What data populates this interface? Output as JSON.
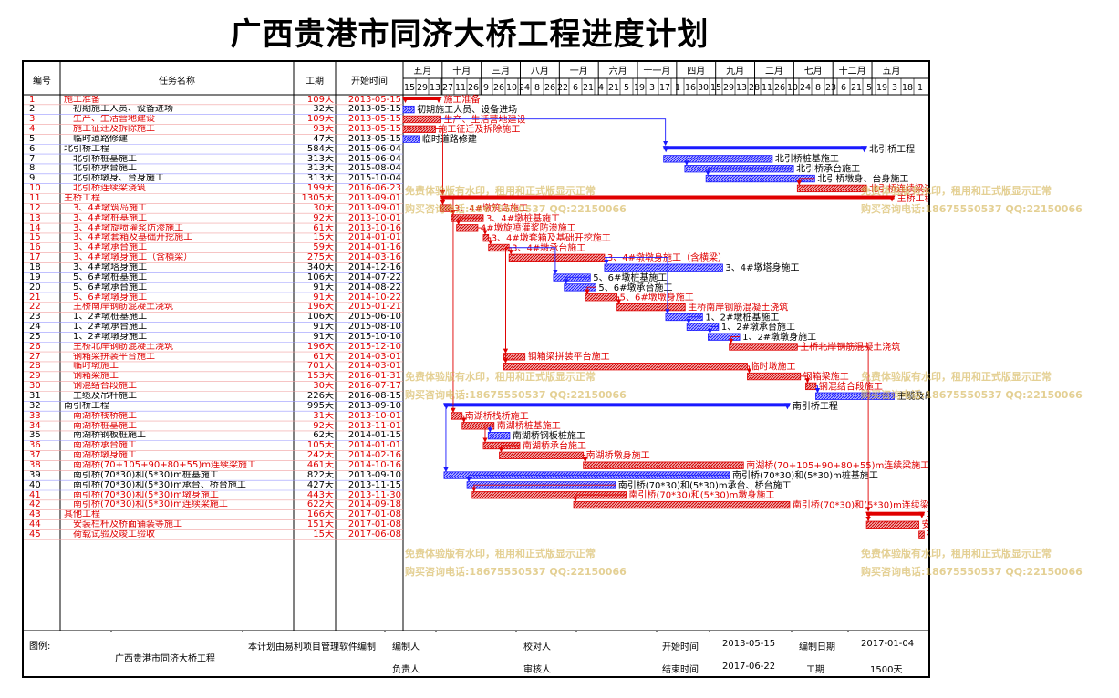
{
  "title": "广西贵港市同济大桥工程进度计划",
  "columns": {
    "id": "编号",
    "name": "任务名称",
    "duration": "工期",
    "start": "开始时间"
  },
  "timeline": {
    "months": [
      "五月",
      "十月",
      "三月",
      "八月",
      "一月",
      "六月",
      "十一月",
      "四月",
      "九月",
      "二月",
      "七月",
      "十二月",
      "五月"
    ],
    "days": [
      "15",
      "29",
      "13",
      "27",
      "11",
      "26",
      "9",
      "26",
      "10",
      "24",
      "8",
      "26",
      "22",
      "6",
      "21",
      "4",
      "21",
      "5",
      "19",
      "3",
      "17",
      "1",
      "16",
      "30",
      "15",
      "29",
      "13",
      "28",
      "11",
      "26",
      "10",
      "24",
      "8",
      "23",
      "6",
      "21",
      "5",
      "19",
      "3",
      "18",
      "1"
    ]
  },
  "chart_data": {
    "type": "gantt",
    "title": "广西贵港市同济大桥工程进度计划",
    "x_start": "2013-05-15",
    "x_end": "2017-06-30",
    "tasks": [
      {
        "id": "1",
        "name": "施工准备",
        "duration": "109天",
        "start": "2013-05-15",
        "days": 109,
        "kind": "summary",
        "color": "red",
        "bar_label": "施工准备"
      },
      {
        "id": "2",
        "name": "初期施工人员、设备进场",
        "duration": "32天",
        "start": "2013-05-15",
        "days": 32,
        "kind": "task",
        "color": "blue",
        "bar_label": "初期施工人员、设备进场"
      },
      {
        "id": "3",
        "name": "生产、生活营地建设",
        "duration": "109天",
        "start": "2013-05-15",
        "days": 109,
        "kind": "task",
        "color": "red",
        "bar_label": "生产、生活营地建设"
      },
      {
        "id": "4",
        "name": "施工征迁及拆除施工",
        "duration": "93天",
        "start": "2013-05-15",
        "days": 93,
        "kind": "task",
        "color": "red",
        "bar_label": "施工征迁及拆除施工"
      },
      {
        "id": "5",
        "name": "临时道路修建",
        "duration": "47天",
        "start": "2013-05-15",
        "days": 47,
        "kind": "task",
        "color": "blue",
        "bar_label": "临时道路修建"
      },
      {
        "id": "6",
        "name": "北引桥工程",
        "duration": "584天",
        "start": "2015-06-04",
        "days": 584,
        "kind": "summary",
        "color": "blue",
        "bar_label": "北引桥工程"
      },
      {
        "id": "7",
        "name": "北引桥桩基施工",
        "duration": "313天",
        "start": "2015-06-04",
        "days": 313,
        "kind": "task",
        "color": "blue",
        "bar_label": "北引桥桩基施工"
      },
      {
        "id": "8",
        "name": "北引桥承台施工",
        "duration": "313天",
        "start": "2015-08-04",
        "days": 313,
        "kind": "task",
        "color": "blue",
        "bar_label": "北引桥承台施工"
      },
      {
        "id": "9",
        "name": "北引桥墩身、台身施工",
        "duration": "313天",
        "start": "2015-10-04",
        "days": 313,
        "kind": "task",
        "color": "blue",
        "bar_label": "北引桥墩身、台身施工"
      },
      {
        "id": "10",
        "name": "北引桥连续梁浇筑",
        "duration": "199天",
        "start": "2016-06-23",
        "days": 199,
        "kind": "task",
        "color": "red",
        "bar_label": "北引桥连续梁浇筑"
      },
      {
        "id": "11",
        "name": "主桥工程",
        "duration": "1305天",
        "start": "2013-09-01",
        "days": 1305,
        "kind": "summary",
        "color": "red",
        "bar_label": "主桥工程"
      },
      {
        "id": "12",
        "name": "3、4#墩筑岛施工",
        "duration": "30天",
        "start": "2013-09-01",
        "days": 30,
        "kind": "task",
        "color": "red",
        "bar_label": "3、4#墩筑岛施工"
      },
      {
        "id": "13",
        "name": "3、4#墩桩基施工",
        "duration": "92天",
        "start": "2013-10-01",
        "days": 92,
        "kind": "task",
        "color": "red",
        "bar_label": "3、4#墩桩基施工"
      },
      {
        "id": "14",
        "name": "3、4#墩旋喷灌浆防渗施工",
        "duration": "61天",
        "start": "2013-10-16",
        "days": 61,
        "kind": "task",
        "color": "red",
        "bar_label": "4#墩旋喷灌浆防渗施工"
      },
      {
        "id": "15",
        "name": "3、4#墩套箱及基础开挖施工",
        "duration": "15天",
        "start": "2014-01-01",
        "days": 15,
        "kind": "task",
        "color": "red",
        "bar_label": "3、4#墩套箱及基础开挖施工"
      },
      {
        "id": "16",
        "name": "3、4#墩承台施工",
        "duration": "59天",
        "start": "2014-01-16",
        "days": 59,
        "kind": "task",
        "color": "red",
        "bar_label": "3、4#墩承台施工"
      },
      {
        "id": "17",
        "name": "3、4#墩墩身施工（含横梁）",
        "duration": "275天",
        "start": "2014-03-16",
        "days": 275,
        "kind": "task",
        "color": "red",
        "bar_label": "3、4#墩墩身施工（含横梁）"
      },
      {
        "id": "18",
        "name": "3、4#墩塔身施工",
        "duration": "340天",
        "start": "2014-12-16",
        "days": 340,
        "kind": "task",
        "color": "blue",
        "bar_label": "3、4#墩塔身施工"
      },
      {
        "id": "19",
        "name": "5、6#墩桩基施工",
        "duration": "106天",
        "start": "2014-07-22",
        "days": 106,
        "kind": "task",
        "color": "blue",
        "bar_label": "5、6#墩桩基施工"
      },
      {
        "id": "20",
        "name": "5、6#墩承台施工",
        "duration": "91天",
        "start": "2014-08-22",
        "days": 91,
        "kind": "task",
        "color": "blue",
        "bar_label": "5、6#墩承台施工"
      },
      {
        "id": "21",
        "name": "5、6#墩墩身施工",
        "duration": "91天",
        "start": "2014-10-22",
        "days": 91,
        "kind": "task",
        "color": "red",
        "bar_label": "5、6#墩墩身施工"
      },
      {
        "id": "22",
        "name": "主桥南岸钢筋混凝土浇筑",
        "duration": "196天",
        "start": "2015-01-21",
        "days": 196,
        "kind": "task",
        "color": "red",
        "bar_label": "主桥南岸钢筋混凝土浇筑"
      },
      {
        "id": "23",
        "name": "1、2#墩桩基施工",
        "duration": "106天",
        "start": "2015-06-10",
        "days": 106,
        "kind": "task",
        "color": "blue",
        "bar_label": "1、2#墩桩基施工"
      },
      {
        "id": "24",
        "name": "1、2#墩承台施工",
        "duration": "91天",
        "start": "2015-08-10",
        "days": 91,
        "kind": "task",
        "color": "blue",
        "bar_label": "1、2#墩承台施工"
      },
      {
        "id": "25",
        "name": "1、2#墩墩身施工",
        "duration": "91天",
        "start": "2015-10-10",
        "days": 91,
        "kind": "task",
        "color": "blue",
        "bar_label": "1、2#墩墩身施工"
      },
      {
        "id": "26",
        "name": "主桥北岸钢筋混凝土浇筑",
        "duration": "196天",
        "start": "2015-12-10",
        "days": 196,
        "kind": "task",
        "color": "red",
        "bar_label": "主桥北岸钢筋混凝土浇筑"
      },
      {
        "id": "27",
        "name": "钢箱梁拼装平台施工",
        "duration": "61天",
        "start": "2014-03-01",
        "days": 61,
        "kind": "task",
        "color": "red",
        "bar_label": "钢箱梁拼装平台施工"
      },
      {
        "id": "28",
        "name": "临时墩施工",
        "duration": "701天",
        "start": "2014-03-01",
        "days": 701,
        "kind": "task",
        "color": "red",
        "bar_label": "临时墩施工"
      },
      {
        "id": "29",
        "name": "钢箱梁施工",
        "duration": "153天",
        "start": "2016-01-31",
        "days": 153,
        "kind": "task",
        "color": "red",
        "bar_label": "钢箱梁施工"
      },
      {
        "id": "30",
        "name": "钢混结合段施工",
        "duration": "30天",
        "start": "2016-07-17",
        "days": 30,
        "kind": "task",
        "color": "red",
        "bar_label": "钢混结合段施工"
      },
      {
        "id": "31",
        "name": "主缆及吊杆施工",
        "duration": "226天",
        "start": "2016-08-15",
        "days": 226,
        "kind": "task",
        "color": "blue",
        "bar_label": "主缆及吊杆施工"
      },
      {
        "id": "32",
        "name": "南引桥工程",
        "duration": "995天",
        "start": "2013-09-10",
        "days": 995,
        "kind": "summary",
        "color": "blue",
        "bar_label": "南引桥工程"
      },
      {
        "id": "33",
        "name": "南湖桥栈桥施工",
        "duration": "31天",
        "start": "2013-10-01",
        "days": 31,
        "kind": "task",
        "color": "red",
        "bar_label": "南湖桥栈桥施工"
      },
      {
        "id": "34",
        "name": "南湖桥桩基施工",
        "duration": "92天",
        "start": "2013-11-01",
        "days": 92,
        "kind": "task",
        "color": "red",
        "bar_label": "南湖桥桩基施工"
      },
      {
        "id": "35",
        "name": "南湖桥钢板桩施工",
        "duration": "62天",
        "start": "2014-01-15",
        "days": 62,
        "kind": "task",
        "color": "blue",
        "bar_label": "南湖桥钢板桩施工"
      },
      {
        "id": "36",
        "name": "南湖桥承台施工",
        "duration": "105天",
        "start": "2014-01-01",
        "days": 105,
        "kind": "task",
        "color": "red",
        "bar_label": "南湖桥承台施工"
      },
      {
        "id": "37",
        "name": "南湖桥墩身施工",
        "duration": "242天",
        "start": "2014-02-16",
        "days": 242,
        "kind": "task",
        "color": "red",
        "bar_label": "南湖桥墩身施工"
      },
      {
        "id": "38",
        "name": "南湖桥(70+105+90+80+55)m连续梁施工",
        "duration": "461天",
        "start": "2014-10-16",
        "days": 461,
        "kind": "task",
        "color": "red",
        "bar_label": "南湖桥(70+105+90+80+55)m连续梁施工"
      },
      {
        "id": "39",
        "name": "南引桥(70*30)和(5*30)m桩基施工",
        "duration": "822天",
        "start": "2013-09-10",
        "days": 822,
        "kind": "task",
        "color": "blue",
        "bar_label": "南引桥(70*30)和(5*30)m桩基施工"
      },
      {
        "id": "40",
        "name": "南引桥(70*30)和(5*30)m承台、桥台施工",
        "duration": "427天",
        "start": "2013-11-15",
        "days": 427,
        "kind": "task",
        "color": "blue",
        "bar_label": "南引桥(70*30)和(5*30)m承台、桥台施工"
      },
      {
        "id": "41",
        "name": "南引桥(70*30)和(5*30)m墩身施工",
        "duration": "443天",
        "start": "2013-11-30",
        "days": 443,
        "kind": "task",
        "color": "red",
        "bar_label": "南引桥(70*30)和(5*30)m墩身施工"
      },
      {
        "id": "42",
        "name": "南引桥(70*30)和(5*30)m连续梁施工",
        "duration": "622天",
        "start": "2014-09-18",
        "days": 622,
        "kind": "task",
        "color": "red",
        "bar_label": "南引桥(70*30)和(5*30)m连续梁施工"
      },
      {
        "id": "43",
        "name": "其他工程",
        "duration": "166天",
        "start": "2017-01-08",
        "days": 166,
        "kind": "summary",
        "color": "red",
        "bar_label": "其他工程"
      },
      {
        "id": "44",
        "name": "安装栏杆及桥面铺装等施工",
        "duration": "151天",
        "start": "2017-01-08",
        "days": 151,
        "kind": "task",
        "color": "red",
        "bar_label": "安装栏杆及桥面铺装等施工"
      },
      {
        "id": "45",
        "name": "荷载试验及竣工验收",
        "duration": "15天",
        "start": "2017-06-08",
        "days": 15,
        "kind": "task",
        "color": "red",
        "bar_label": "荷载试验及竣工验收"
      }
    ]
  },
  "watermark": {
    "line1": "免费体验版有水印，租用和正式版显示正常",
    "line2": "购买咨询电话:18675550537 QQ:22150066"
  },
  "footer": {
    "legend_label": "图例:",
    "project_name": "广西贵港市同济大桥工程",
    "software_note": "本计划由易利项目管理软件编制",
    "compiler_label": "编制人",
    "checker_label": "校对人",
    "start_label": "开始时间",
    "start_value": "2013-05-15",
    "compile_date_label": "编制日期",
    "compile_date_value": "2017-01-04",
    "responsible_label": "负责人",
    "reviewer_label": "审核人",
    "end_label": "结束时间",
    "end_value": "2017-06-22",
    "duration_label": "工期",
    "duration_value": "1500天"
  },
  "colors": {
    "red": "#e00000",
    "blue": "#1a1aff",
    "red_fill": "#e88a8a",
    "blue_fill": "#6a6af0"
  }
}
